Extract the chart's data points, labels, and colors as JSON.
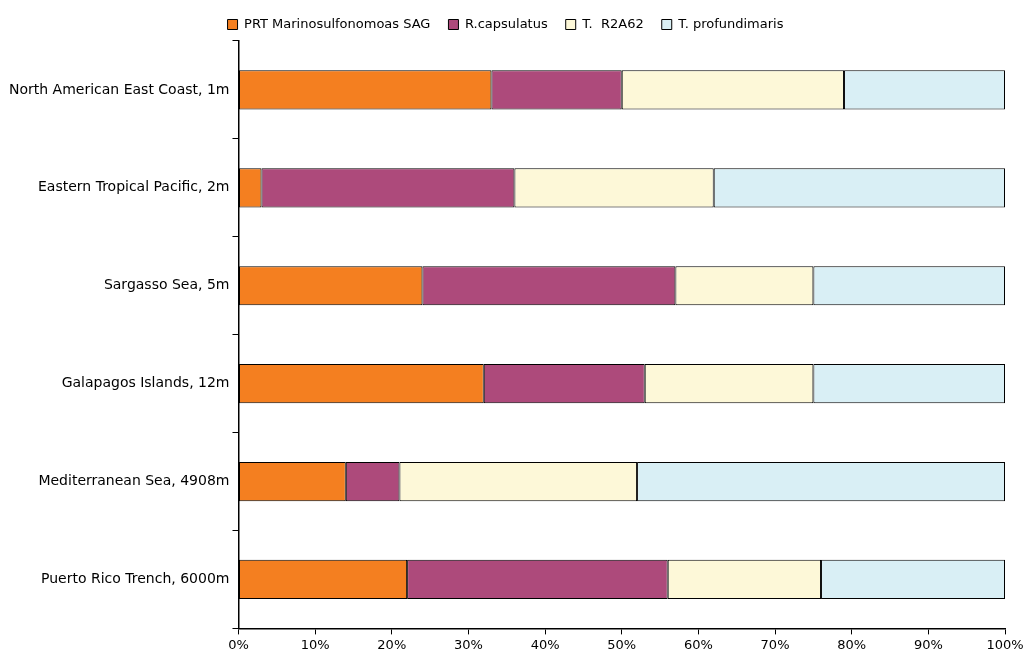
{
  "chart_data": {
    "type": "bar",
    "orientation": "horizontal",
    "stacked": true,
    "categories": [
      "North American East Coast, 1m",
      "Eastern Tropical Pacific, 2m",
      "Sargasso Sea, 5m",
      "Galapagos Islands, 12m",
      "Mediterranean Sea, 4908m",
      "Puerto Rico Trench, 6000m"
    ],
    "series": [
      {
        "name": "PRT Marinosulfonomoas SAG",
        "color": "#f47f20",
        "values": [
          33,
          3,
          24,
          32,
          14,
          22
        ]
      },
      {
        "name": "R.capsulatus",
        "color": "#ad4a7b",
        "values": [
          17,
          33,
          33,
          21,
          7,
          34
        ]
      },
      {
        "name": "T.  R2A62",
        "color": "#fdf8d8",
        "values": [
          29,
          26,
          18,
          22,
          31,
          20
        ]
      },
      {
        "name": "T. profundimaris",
        "color": "#d9eff5",
        "values": [
          21,
          38,
          25,
          25,
          48,
          24
        ]
      }
    ],
    "xlim": [
      0,
      100
    ],
    "xticks": [
      {
        "value": 0,
        "label": "0%"
      },
      {
        "value": 10,
        "label": "10%"
      },
      {
        "value": 20,
        "label": "20%"
      },
      {
        "value": 30,
        "label": "30%"
      },
      {
        "value": 40,
        "label": "40%"
      },
      {
        "value": 50,
        "label": "50%"
      },
      {
        "value": 60,
        "label": "60%"
      },
      {
        "value": 70,
        "label": "70%"
      },
      {
        "value": 80,
        "label": "80%"
      },
      {
        "value": 90,
        "label": "90%"
      },
      {
        "value": 100,
        "label": "100%"
      }
    ],
    "grid": false,
    "legend": "top"
  }
}
